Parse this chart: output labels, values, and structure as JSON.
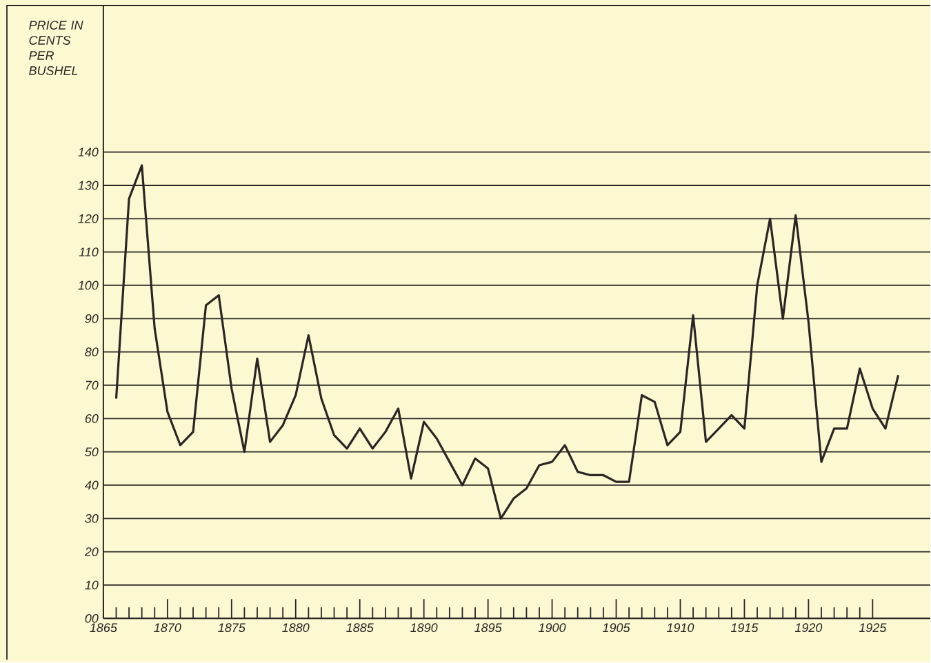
{
  "chart_data": {
    "type": "line",
    "ylabel": "PRICE IN CENTS PER BUSHEL",
    "color": "#2b2624",
    "line_style": "solid",
    "marker": "none",
    "grid": "y",
    "x": [
      1866,
      1867,
      1868,
      1869,
      1870,
      1871,
      1872,
      1873,
      1874,
      1875,
      1876,
      1877,
      1878,
      1879,
      1880,
      1881,
      1882,
      1883,
      1884,
      1885,
      1886,
      1887,
      1888,
      1889,
      1890,
      1891,
      1892,
      1893,
      1894,
      1895,
      1896,
      1897,
      1898,
      1899,
      1900,
      1901,
      1902,
      1903,
      1904,
      1905,
      1906,
      1907,
      1908,
      1909,
      1910,
      1911,
      1912,
      1913,
      1914,
      1915,
      1916,
      1917,
      1918,
      1919,
      1920,
      1921,
      1922,
      1923,
      1924,
      1925,
      1926,
      1927
    ],
    "values": [
      66,
      126,
      136,
      87,
      62,
      52,
      56,
      94,
      97,
      69,
      50,
      78,
      53,
      58,
      67,
      85,
      66,
      55,
      51,
      57,
      51,
      56,
      63,
      42,
      59,
      54,
      47,
      40,
      48,
      45,
      30,
      36,
      39,
      46,
      47,
      52,
      44,
      43,
      43,
      41,
      41,
      67,
      65,
      52,
      56,
      91,
      53,
      57,
      61,
      57,
      100,
      120,
      90,
      121,
      89,
      47,
      57,
      57,
      75,
      63,
      57,
      73
    ],
    "xlim": [
      1865,
      1929.5
    ],
    "xticks": [
      1865,
      1870,
      1875,
      1880,
      1885,
      1890,
      1895,
      1900,
      1905,
      1910,
      1915,
      1920,
      1925
    ],
    "ylim": [
      0,
      184
    ],
    "yticks": [
      {
        "value": 0,
        "label": "00"
      },
      10,
      20,
      30,
      40,
      50,
      60,
      70,
      80,
      90,
      100,
      110,
      120,
      130,
      140
    ]
  }
}
